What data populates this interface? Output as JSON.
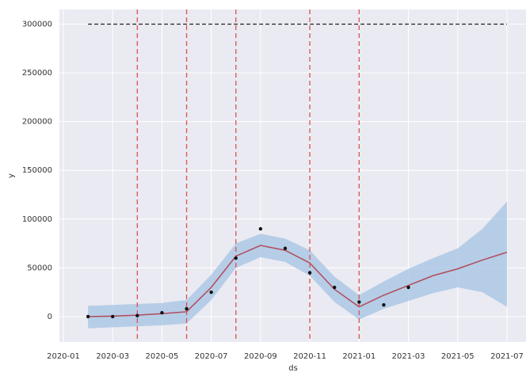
{
  "chart_data": {
    "type": "forecast",
    "x_label": "ds",
    "y_label": "y",
    "x": [
      "2020-01",
      "2020-02",
      "2020-03",
      "2020-04",
      "2020-05",
      "2020-06",
      "2020-07",
      "2020-08",
      "2020-09",
      "2020-10",
      "2020-11",
      "2020-12",
      "2021-01",
      "2021-02",
      "2021-03",
      "2021-04",
      "2021-05",
      "2021-06",
      "2021-07"
    ],
    "y": [
      null,
      0,
      0,
      1000,
      4000,
      8000,
      25000,
      60000,
      90000,
      70000,
      45000,
      30000,
      15000,
      12000,
      30000,
      null,
      null,
      null,
      null
    ],
    "yhat": [
      null,
      0,
      500,
      1500,
      3000,
      5000,
      30000,
      62000,
      73000,
      68000,
      55000,
      28000,
      10000,
      22000,
      32000,
      42000,
      49000,
      58000,
      66000
    ],
    "yhat_lower": [
      null,
      -12000,
      -11000,
      -10000,
      -9000,
      -7000,
      17000,
      50000,
      61000,
      56000,
      42000,
      15000,
      -3000,
      8000,
      16000,
      24000,
      30000,
      25000,
      10000
    ],
    "yhat_upper": [
      null,
      11000,
      12000,
      13000,
      14000,
      17000,
      43000,
      75000,
      85000,
      80000,
      68000,
      41000,
      22000,
      36000,
      49000,
      60000,
      70000,
      90000,
      118000
    ],
    "cap": 300000,
    "cap_x": [
      "2020-02",
      "2021-07"
    ],
    "changepoints": [
      "2020-04",
      "2020-06",
      "2020-08",
      "2020-11",
      "2021-01"
    ],
    "xlim": [
      "2020-01",
      "2021-07"
    ],
    "ylim": [
      -26000,
      315000
    ],
    "yticks": [
      0,
      50000,
      100000,
      150000,
      200000,
      250000,
      300000
    ],
    "xticks": [
      "2020-01",
      "2020-03",
      "2020-05",
      "2020-07",
      "2020-09",
      "2020-11",
      "2021-01",
      "2021-03",
      "2021-05",
      "2021-07"
    ],
    "colors": {
      "points": "#111111",
      "yhat": "#b24a5a",
      "band": "#a9c6e3",
      "cap": "#222222",
      "changepoints": "#d9534f"
    },
    "grid": true
  }
}
